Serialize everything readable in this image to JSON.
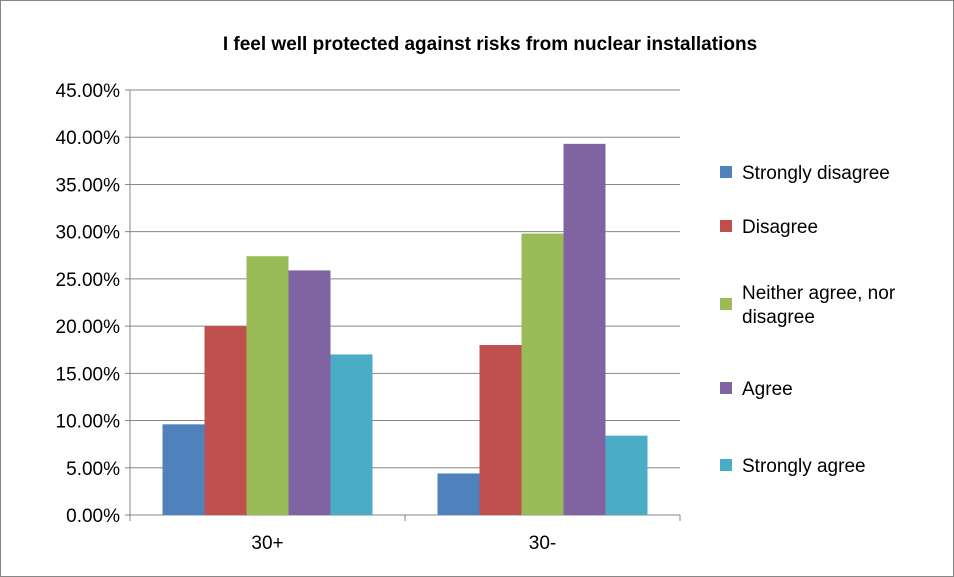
{
  "chart_data": {
    "type": "bar",
    "title": "I feel well protected against risks from nuclear installations",
    "categories": [
      "30+",
      "30-"
    ],
    "series": [
      {
        "name": "Strongly disagree",
        "color": "#4F81BD",
        "values": [
          9.6,
          4.4
        ]
      },
      {
        "name": "Disagree",
        "color": "#C0504D",
        "values": [
          20.0,
          18.0
        ]
      },
      {
        "name": "Neither agree, nor disagree",
        "legend_lines": [
          "Neither agree, nor",
          "disagree"
        ],
        "color": "#9BBB59",
        "values": [
          27.4,
          29.8
        ]
      },
      {
        "name": "Agree",
        "color": "#8064A2",
        "values": [
          25.9,
          39.3
        ]
      },
      {
        "name": "Strongly agree",
        "color": "#4BACC6",
        "values": [
          17.0,
          8.4
        ]
      }
    ],
    "y_ticks": [
      "0.00%",
      "5.00%",
      "10.00%",
      "15.00%",
      "20.00%",
      "25.00%",
      "30.00%",
      "35.00%",
      "40.00%",
      "45.00%"
    ],
    "ylim": [
      0,
      45
    ],
    "grid": true,
    "legend_position": "right"
  }
}
